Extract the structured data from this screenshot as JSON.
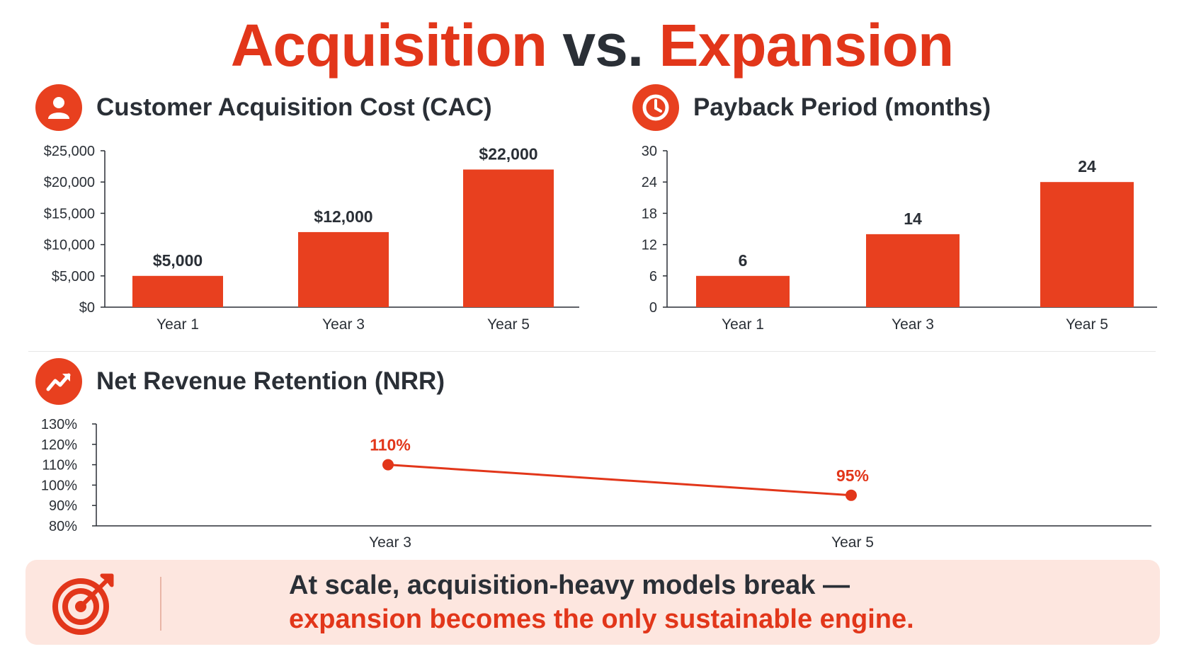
{
  "title": {
    "part1": "Acquisition",
    "part2": "vs.",
    "part3": "Expansion"
  },
  "colors": {
    "accent": "#e2361a",
    "bar": "#e8401f",
    "text": "#2a2f36",
    "banner_bg": "#fde6df"
  },
  "panels": {
    "cac": {
      "title": "Customer Acquisition Cost (CAC)",
      "icon": "user-icon"
    },
    "payback": {
      "title": "Payback Period (months)",
      "icon": "clock-icon"
    },
    "nrr": {
      "title": "Net Revenue Retention (NRR)",
      "icon": "trend-up-icon"
    }
  },
  "chart_data": [
    {
      "id": "cac",
      "type": "bar",
      "title": "Customer Acquisition Cost (CAC)",
      "categories": [
        "Year 1",
        "Year 3",
        "Year 5"
      ],
      "values": [
        5000,
        12000,
        22000
      ],
      "value_labels": [
        "$5,000",
        "$12,000",
        "$22,000"
      ],
      "yticks": [
        0,
        5000,
        10000,
        15000,
        20000,
        25000
      ],
      "ytick_labels": [
        "$0",
        "$5,000",
        "$10,000",
        "$15,000",
        "$20,000",
        "$25,000"
      ],
      "ylim": [
        0,
        25000
      ],
      "grid": false
    },
    {
      "id": "payback",
      "type": "bar",
      "title": "Payback Period (months)",
      "categories": [
        "Year 1",
        "Year 3",
        "Year 5"
      ],
      "values": [
        6,
        14,
        24
      ],
      "value_labels": [
        "6",
        "14",
        "24"
      ],
      "yticks": [
        0,
        6,
        12,
        18,
        24,
        30
      ],
      "ytick_labels": [
        "0",
        "6",
        "12",
        "18",
        "24",
        "30"
      ],
      "ylim": [
        0,
        30
      ],
      "grid": false
    },
    {
      "id": "nrr",
      "type": "line",
      "title": "Net Revenue Retention (NRR)",
      "categories": [
        "Year 3",
        "Year 5"
      ],
      "values": [
        110,
        95
      ],
      "value_labels": [
        "110%",
        "95%"
      ],
      "yticks": [
        80,
        90,
        100,
        110,
        120,
        130
      ],
      "ytick_labels": [
        "80%",
        "90%",
        "100%",
        "110%",
        "120%",
        "130%"
      ],
      "ylim": [
        80,
        130
      ],
      "grid": false
    }
  ],
  "banner": {
    "icon": "target-icon",
    "line1": "At scale, acquisition-heavy models break —",
    "line2": "expansion becomes the only sustainable engine."
  }
}
